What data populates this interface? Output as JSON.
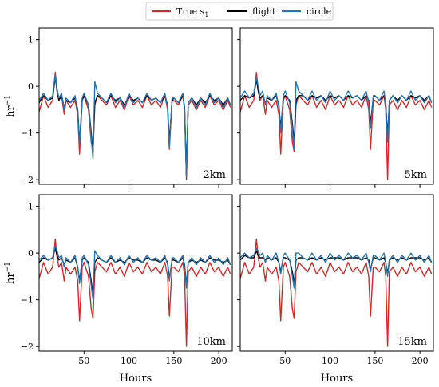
{
  "legend": [
    {
      "label": "True s",
      "sub": "1",
      "color": "#d62728"
    },
    {
      "label": "flight",
      "sub": "",
      "color": "#000000"
    },
    {
      "label": "circle",
      "sub": "",
      "color": "#1f77b4"
    }
  ],
  "chart_data": {
    "type": "line",
    "xlabel": "Hours",
    "ylabel": "hr",
    "ylabel_sup": "−1",
    "xlim": [
      0,
      215
    ],
    "ylim": [
      -2.1,
      1.25
    ],
    "xticks": [
      50,
      100,
      150,
      200
    ],
    "yticks": [
      1,
      0,
      -1,
      -2
    ],
    "grid": false,
    "legend_position": "top-center",
    "x": [
      0,
      5,
      10,
      15,
      18,
      20,
      22,
      25,
      28,
      30,
      35,
      40,
      43,
      45,
      48,
      50,
      55,
      58,
      60,
      62,
      65,
      70,
      75,
      80,
      85,
      90,
      95,
      100,
      105,
      110,
      115,
      120,
      125,
      130,
      135,
      140,
      143,
      145,
      148,
      150,
      155,
      160,
      162,
      164,
      166,
      170,
      175,
      180,
      185,
      190,
      195,
      200,
      205,
      210,
      213
    ],
    "panels": [
      {
        "label": "2km",
        "series": [
          {
            "name": "True s1",
            "color": "#d62728",
            "values": [
              -0.55,
              -0.2,
              -0.45,
              -0.3,
              0.3,
              -0.1,
              -0.3,
              -0.2,
              -0.6,
              -0.3,
              -0.45,
              -0.3,
              -0.6,
              -1.45,
              -0.3,
              -0.2,
              -0.5,
              -1.2,
              -1.4,
              -0.4,
              -0.2,
              -0.3,
              -0.4,
              -0.2,
              -0.45,
              -0.3,
              -0.5,
              -0.2,
              -0.4,
              -0.3,
              -0.45,
              -0.2,
              -0.4,
              -0.3,
              -0.45,
              -0.2,
              -0.5,
              -1.35,
              -0.3,
              -0.3,
              -0.4,
              -0.2,
              -0.5,
              -2.0,
              -0.4,
              -0.3,
              -0.5,
              -0.3,
              -0.45,
              -0.2,
              -0.4,
              -0.3,
              -0.5,
              -0.3,
              -0.45
            ]
          },
          {
            "name": "flight",
            "color": "#000000",
            "values": [
              -0.35,
              -0.2,
              -0.3,
              -0.25,
              0.2,
              -0.1,
              -0.3,
              -0.2,
              -0.45,
              -0.3,
              -0.35,
              -0.25,
              -0.5,
              -1.2,
              -0.3,
              -0.2,
              -0.4,
              -1.0,
              -1.4,
              -0.35,
              -0.2,
              -0.25,
              -0.35,
              -0.2,
              -0.3,
              -0.25,
              -0.4,
              -0.2,
              -0.3,
              -0.25,
              -0.35,
              -0.2,
              -0.3,
              -0.25,
              -0.35,
              -0.2,
              -0.4,
              -1.2,
              -0.3,
              -0.25,
              -0.35,
              -0.2,
              -0.45,
              -1.9,
              -0.35,
              -0.25,
              -0.4,
              -0.25,
              -0.35,
              -0.2,
              -0.3,
              -0.25,
              -0.4,
              -0.25,
              -0.4
            ]
          },
          {
            "name": "circle",
            "color": "#1f77b4",
            "values": [
              -0.3,
              -0.15,
              -0.3,
              -0.2,
              0.25,
              -0.05,
              -0.25,
              -0.15,
              -0.5,
              -0.25,
              -0.35,
              -0.2,
              -0.55,
              -1.25,
              -0.25,
              -0.15,
              -0.4,
              -1.1,
              -1.55,
              0.1,
              -0.15,
              -0.25,
              -0.35,
              -0.15,
              -0.35,
              -0.25,
              -0.45,
              -0.15,
              -0.35,
              -0.25,
              -0.35,
              -0.15,
              -0.3,
              -0.25,
              -0.35,
              -0.15,
              -0.45,
              -1.3,
              -0.25,
              -0.25,
              -0.35,
              -0.15,
              -0.5,
              -1.95,
              -0.35,
              -0.25,
              -0.45,
              -0.25,
              -0.4,
              -0.15,
              -0.35,
              -0.25,
              -0.45,
              -0.25,
              -0.4
            ]
          }
        ]
      },
      {
        "label": "5km",
        "series": [
          {
            "name": "True s1",
            "color": "#d62728",
            "values": [
              -0.55,
              -0.2,
              -0.45,
              -0.3,
              0.3,
              -0.1,
              -0.3,
              -0.2,
              -0.6,
              -0.3,
              -0.45,
              -0.3,
              -0.6,
              -1.45,
              -0.3,
              -0.2,
              -0.5,
              -1.2,
              -1.4,
              -0.4,
              -0.2,
              -0.3,
              -0.4,
              -0.2,
              -0.45,
              -0.3,
              -0.5,
              -0.2,
              -0.4,
              -0.3,
              -0.45,
              -0.2,
              -0.4,
              -0.3,
              -0.45,
              -0.2,
              -0.5,
              -1.35,
              -0.3,
              -0.3,
              -0.4,
              -0.2,
              -0.5,
              -2.0,
              -0.4,
              -0.3,
              -0.5,
              -0.3,
              -0.45,
              -0.2,
              -0.4,
              -0.3,
              -0.5,
              -0.3,
              -0.45
            ]
          },
          {
            "name": "flight",
            "color": "#000000",
            "values": [
              -0.3,
              -0.2,
              -0.25,
              -0.2,
              0.15,
              -0.1,
              -0.25,
              -0.2,
              -0.35,
              -0.25,
              -0.3,
              -0.2,
              -0.4,
              -0.9,
              -0.25,
              -0.2,
              -0.3,
              -0.8,
              -1.2,
              -0.3,
              -0.2,
              -0.2,
              -0.3,
              -0.2,
              -0.25,
              -0.2,
              -0.3,
              -0.2,
              -0.25,
              -0.2,
              -0.3,
              -0.2,
              -0.25,
              -0.2,
              -0.3,
              -0.2,
              -0.3,
              -0.8,
              -0.25,
              -0.2,
              -0.3,
              -0.2,
              -0.35,
              -1.1,
              -0.3,
              -0.2,
              -0.3,
              -0.2,
              -0.3,
              -0.2,
              -0.25,
              -0.2,
              -0.3,
              -0.2,
              -0.35
            ]
          },
          {
            "name": "circle",
            "color": "#1f77b4",
            "values": [
              -0.25,
              -0.1,
              -0.25,
              -0.15,
              0.2,
              0.0,
              -0.2,
              -0.1,
              -0.4,
              -0.2,
              -0.3,
              -0.15,
              -0.45,
              -1.0,
              -0.2,
              -0.1,
              -0.35,
              -0.9,
              -1.35,
              0.1,
              -0.1,
              -0.2,
              -0.3,
              -0.1,
              -0.3,
              -0.2,
              -0.35,
              -0.1,
              -0.3,
              -0.2,
              -0.3,
              -0.1,
              -0.25,
              -0.2,
              -0.3,
              -0.1,
              -0.35,
              -0.9,
              -0.2,
              -0.2,
              -0.3,
              -0.1,
              -0.4,
              -1.2,
              -0.3,
              -0.2,
              -0.35,
              -0.2,
              -0.3,
              -0.1,
              -0.3,
              -0.2,
              -0.35,
              -0.2,
              -0.35
            ]
          }
        ]
      },
      {
        "label": "10km",
        "series": [
          {
            "name": "True s1",
            "color": "#d62728",
            "values": [
              -0.55,
              -0.2,
              -0.45,
              -0.3,
              0.3,
              -0.1,
              -0.3,
              -0.2,
              -0.6,
              -0.3,
              -0.45,
              -0.3,
              -0.6,
              -1.45,
              -0.3,
              -0.2,
              -0.5,
              -1.2,
              -1.4,
              -0.4,
              -0.2,
              -0.3,
              -0.4,
              -0.2,
              -0.45,
              -0.3,
              -0.5,
              -0.2,
              -0.4,
              -0.3,
              -0.45,
              -0.2,
              -0.4,
              -0.3,
              -0.45,
              -0.2,
              -0.5,
              -1.35,
              -0.3,
              -0.3,
              -0.4,
              -0.2,
              -0.5,
              -2.0,
              -0.4,
              -0.3,
              -0.5,
              -0.3,
              -0.45,
              -0.2,
              -0.4,
              -0.3,
              -0.5,
              -0.3,
              -0.45
            ]
          },
          {
            "name": "flight",
            "color": "#000000",
            "values": [
              -0.2,
              -0.1,
              -0.15,
              -0.1,
              0.1,
              -0.05,
              -0.15,
              -0.1,
              -0.25,
              -0.15,
              -0.2,
              -0.1,
              -0.3,
              -0.6,
              -0.15,
              -0.1,
              -0.2,
              -0.6,
              -0.9,
              -0.2,
              -0.1,
              -0.15,
              -0.2,
              -0.1,
              -0.2,
              -0.15,
              -0.2,
              -0.1,
              -0.15,
              -0.15,
              -0.2,
              -0.1,
              -0.15,
              -0.15,
              -0.2,
              -0.1,
              -0.2,
              -0.55,
              -0.15,
              -0.15,
              -0.2,
              -0.1,
              -0.25,
              -0.7,
              -0.2,
              -0.15,
              -0.2,
              -0.15,
              -0.2,
              -0.1,
              -0.15,
              -0.15,
              -0.2,
              -0.15,
              -0.25
            ]
          },
          {
            "name": "circle",
            "color": "#1f77b4",
            "values": [
              -0.15,
              -0.05,
              -0.15,
              -0.1,
              0.15,
              0.05,
              -0.1,
              -0.05,
              -0.3,
              -0.1,
              -0.2,
              -0.05,
              -0.3,
              -0.65,
              -0.1,
              -0.05,
              -0.25,
              -0.7,
              -1.0,
              0.05,
              -0.05,
              -0.15,
              -0.2,
              -0.05,
              -0.2,
              -0.1,
              -0.25,
              -0.05,
              -0.2,
              -0.1,
              -0.2,
              -0.05,
              -0.15,
              -0.1,
              -0.2,
              -0.05,
              -0.25,
              -0.6,
              -0.1,
              -0.1,
              -0.2,
              -0.05,
              -0.3,
              -0.75,
              -0.2,
              -0.1,
              -0.25,
              -0.1,
              -0.2,
              -0.05,
              -0.2,
              -0.1,
              -0.25,
              -0.1,
              -0.25
            ]
          }
        ]
      },
      {
        "label": "15km",
        "series": [
          {
            "name": "True s1",
            "color": "#d62728",
            "values": [
              -0.55,
              -0.2,
              -0.45,
              -0.3,
              0.3,
              -0.1,
              -0.3,
              -0.2,
              -0.6,
              -0.3,
              -0.45,
              -0.3,
              -0.6,
              -1.45,
              -0.3,
              -0.2,
              -0.5,
              -1.2,
              -1.4,
              -0.4,
              -0.2,
              -0.3,
              -0.4,
              -0.2,
              -0.45,
              -0.3,
              -0.5,
              -0.2,
              -0.4,
              -0.3,
              -0.45,
              -0.2,
              -0.4,
              -0.3,
              -0.45,
              -0.2,
              -0.5,
              -1.35,
              -0.3,
              -0.3,
              -0.4,
              -0.2,
              -0.5,
              -2.0,
              -0.4,
              -0.3,
              -0.5,
              -0.3,
              -0.45,
              -0.2,
              -0.4,
              -0.3,
              -0.5,
              -0.3,
              -0.45
            ]
          },
          {
            "name": "flight",
            "color": "#000000",
            "values": [
              -0.15,
              -0.05,
              -0.1,
              -0.1,
              0.05,
              -0.05,
              -0.1,
              -0.1,
              -0.15,
              -0.1,
              -0.15,
              -0.1,
              -0.2,
              -0.4,
              -0.1,
              -0.1,
              -0.15,
              -0.4,
              -0.65,
              -0.15,
              -0.1,
              -0.1,
              -0.15,
              -0.1,
              -0.15,
              -0.1,
              -0.15,
              -0.1,
              -0.1,
              -0.1,
              -0.15,
              -0.1,
              -0.1,
              -0.1,
              -0.15,
              -0.1,
              -0.15,
              -0.35,
              -0.1,
              -0.1,
              -0.15,
              -0.1,
              -0.2,
              -0.45,
              -0.15,
              -0.1,
              -0.15,
              -0.1,
              -0.15,
              -0.1,
              -0.1,
              -0.1,
              -0.15,
              -0.1,
              -0.2
            ]
          },
          {
            "name": "circle",
            "color": "#1f77b4",
            "values": [
              -0.1,
              0.0,
              -0.1,
              -0.05,
              0.1,
              0.05,
              -0.05,
              0.0,
              -0.2,
              -0.05,
              -0.15,
              0.0,
              -0.2,
              -0.45,
              -0.05,
              0.0,
              -0.15,
              -0.5,
              -0.75,
              0.0,
              0.0,
              -0.1,
              -0.15,
              0.0,
              -0.15,
              -0.05,
              -0.2,
              0.0,
              -0.15,
              -0.05,
              -0.15,
              0.0,
              -0.1,
              -0.05,
              -0.15,
              0.0,
              -0.2,
              -0.4,
              -0.05,
              -0.05,
              -0.15,
              0.0,
              -0.2,
              -0.5,
              -0.15,
              -0.05,
              -0.2,
              -0.05,
              -0.15,
              0.0,
              -0.15,
              -0.05,
              -0.2,
              -0.05,
              -0.2
            ]
          }
        ]
      }
    ]
  }
}
